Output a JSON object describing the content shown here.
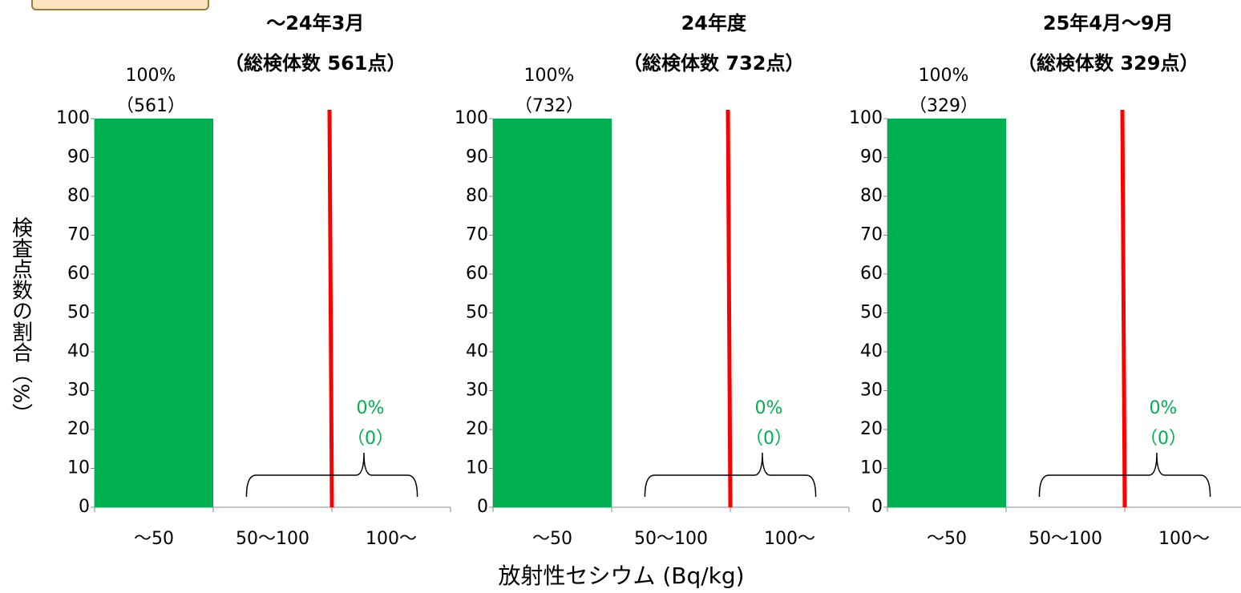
{
  "chart_data": [
    {
      "type": "bar",
      "title": [
        "～24年3月",
        "（総検体数 561点）"
      ],
      "categories": [
        "～50",
        "50～100",
        "100～"
      ],
      "values": [
        100,
        0,
        0
      ],
      "color": "#00b050",
      "bar_label": {
        "percent": "100%",
        "count": "（561）"
      },
      "brace_label": {
        "percent": "0%",
        "count": "（0）"
      },
      "limit_color": "#ff0000",
      "ylim": [
        0,
        100
      ],
      "yticks": [
        0,
        10,
        20,
        30,
        40,
        50,
        60,
        70,
        80,
        90,
        100
      ]
    },
    {
      "type": "bar",
      "title": [
        "24年度",
        "（総検体数 732点）"
      ],
      "categories": [
        "～50",
        "50～100",
        "100～"
      ],
      "values": [
        100,
        0,
        0
      ],
      "color": "#00b050",
      "bar_label": {
        "percent": "100%",
        "count": "（732）"
      },
      "brace_label": {
        "percent": "0%",
        "count": "（0）"
      },
      "limit_color": "#ff0000",
      "ylim": [
        0,
        100
      ],
      "yticks": [
        0,
        10,
        20,
        30,
        40,
        50,
        60,
        70,
        80,
        90,
        100
      ]
    },
    {
      "type": "bar",
      "title": [
        "25年4月～9月",
        "（総検体数 329点）"
      ],
      "categories": [
        "～50",
        "50～100",
        "100～"
      ],
      "values": [
        100,
        0,
        0
      ],
      "color": "#00b050",
      "bar_label": {
        "percent": "100%",
        "count": "（329）"
      },
      "brace_label": {
        "percent": "0%",
        "count": "（0）"
      },
      "limit_color": "#ff0000",
      "ylim": [
        0,
        100
      ],
      "yticks": [
        0,
        10,
        20,
        30,
        40,
        50,
        60,
        70,
        80,
        90,
        100
      ]
    }
  ],
  "ylabel": "検査点数の割合（%）",
  "xlabel": "放射性セシウム (Bq/kg)"
}
